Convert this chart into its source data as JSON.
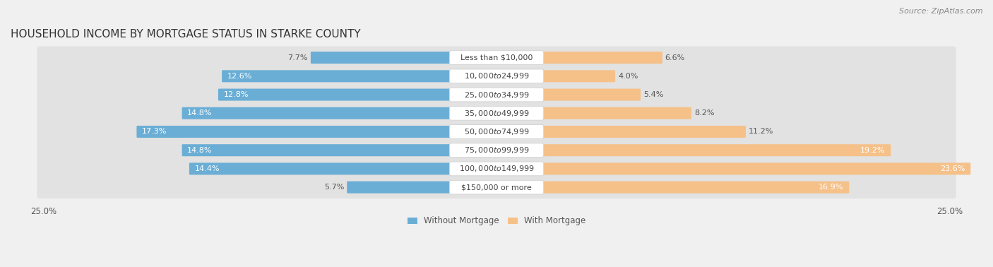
{
  "title": "HOUSEHOLD INCOME BY MORTGAGE STATUS IN STARKE COUNTY",
  "source": "Source: ZipAtlas.com",
  "categories": [
    "Less than $10,000",
    "$10,000 to $24,999",
    "$25,000 to $34,999",
    "$35,000 to $49,999",
    "$50,000 to $74,999",
    "$75,000 to $99,999",
    "$100,000 to $149,999",
    "$150,000 or more"
  ],
  "without_mortgage": [
    7.7,
    12.6,
    12.8,
    14.8,
    17.3,
    14.8,
    14.4,
    5.7
  ],
  "with_mortgage": [
    6.6,
    4.0,
    5.4,
    8.2,
    11.2,
    19.2,
    23.6,
    16.9
  ],
  "axis_limit": 25.0,
  "blue_color": "#6aaed6",
  "orange_color": "#f5c189",
  "background_color": "#f0f0f0",
  "row_bg_color": "#e2e2e2",
  "label_bg_color": "#ffffff",
  "title_fontsize": 11,
  "label_fontsize": 8,
  "value_fontsize": 8,
  "tick_fontsize": 8.5,
  "legend_fontsize": 8.5,
  "source_fontsize": 8
}
